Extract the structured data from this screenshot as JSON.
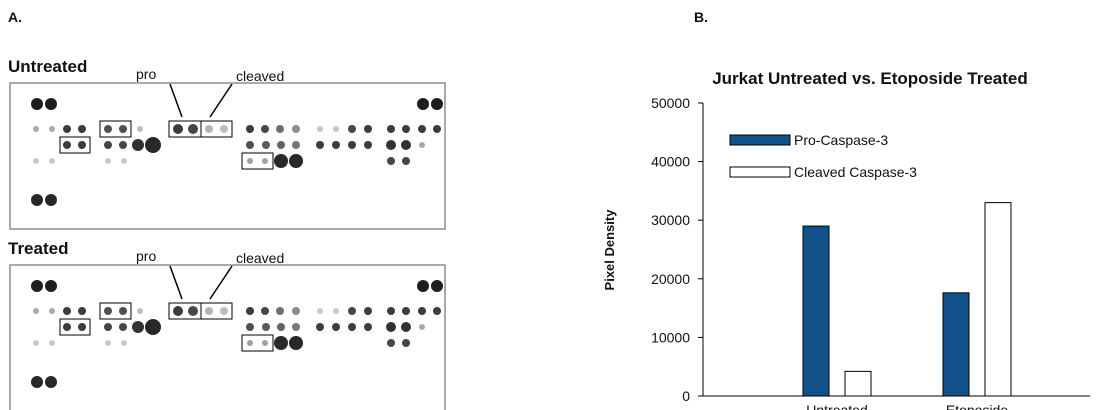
{
  "panel_labels": [
    "A.",
    "B."
  ],
  "blot": {
    "sections": [
      {
        "title": "Untreated",
        "pro": "pro",
        "cleaved": "cleaved"
      },
      {
        "title": "Treated",
        "pro": "pro",
        "cleaved": "cleaved"
      }
    ]
  },
  "chart_data": {
    "type": "bar",
    "title": "Jurkat Untreated vs. Etoposide Treated",
    "y_label": "Pixel Density",
    "categories": [
      "Untreated",
      "Etoposide"
    ],
    "series": [
      {
        "name": "Pro-Caspase-3",
        "color": "#12508a",
        "values": [
          29000,
          17600
        ]
      },
      {
        "name": "Cleaved Caspase-3",
        "color": "#ffffff",
        "values": [
          4200,
          33000
        ]
      }
    ],
    "ylim": [
      0,
      50000
    ],
    "yticks": [
      0,
      10000,
      20000,
      30000,
      40000,
      50000
    ],
    "legend": "upper left"
  }
}
